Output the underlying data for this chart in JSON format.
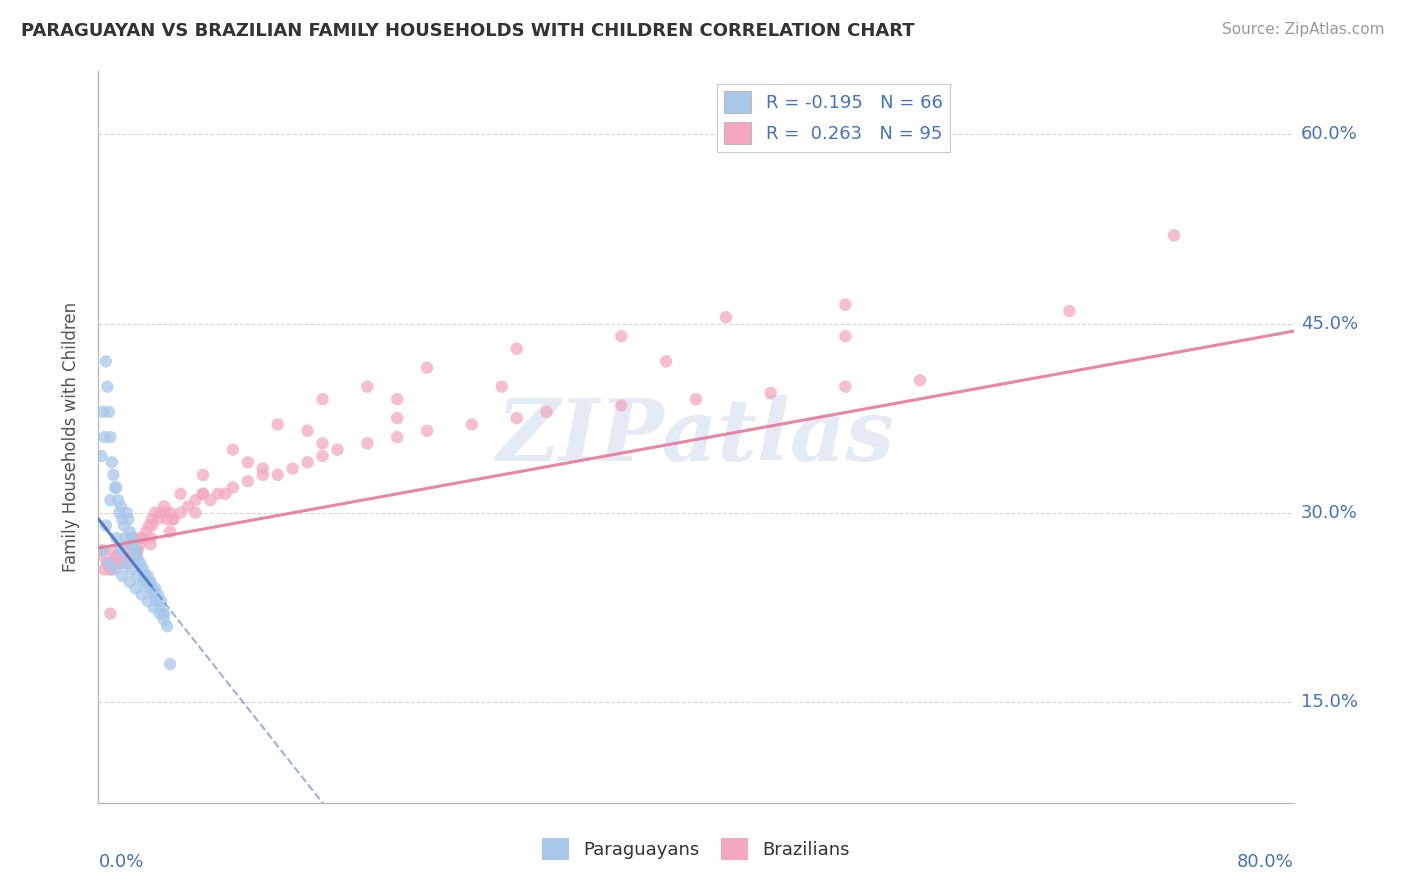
{
  "title": "PARAGUAYAN VS BRAZILIAN FAMILY HOUSEHOLDS WITH CHILDREN CORRELATION CHART",
  "source": "Source: ZipAtlas.com",
  "ylabel": "Family Households with Children",
  "ytick_labels": [
    "15.0%",
    "30.0%",
    "45.0%",
    "60.0%"
  ],
  "ytick_values": [
    0.15,
    0.3,
    0.45,
    0.6
  ],
  "xlim": [
    0.0,
    0.8
  ],
  "ylim": [
    0.07,
    0.65
  ],
  "background_color": "#ffffff",
  "grid_color": "#cccccc",
  "paraguayan_color": "#a8c8ea",
  "brazilian_color": "#f4a8c0",
  "paraguayan_line_color": "#4472c4",
  "brazilian_line_color": "#e87898",
  "R_paraguayan": -0.195,
  "N_paraguayan": 66,
  "R_brazilian": 0.263,
  "N_brazilian": 95,
  "par_x": [
    0.002,
    0.003,
    0.004,
    0.005,
    0.006,
    0.007,
    0.008,
    0.009,
    0.01,
    0.011,
    0.012,
    0.013,
    0.014,
    0.015,
    0.016,
    0.017,
    0.018,
    0.019,
    0.02,
    0.021,
    0.022,
    0.023,
    0.024,
    0.025,
    0.026,
    0.027,
    0.028,
    0.029,
    0.03,
    0.031,
    0.032,
    0.033,
    0.034,
    0.035,
    0.036,
    0.037,
    0.038,
    0.039,
    0.04,
    0.041,
    0.042,
    0.043,
    0.044,
    0.005,
    0.008,
    0.012,
    0.015,
    0.018,
    0.022,
    0.026,
    0.03,
    0.034,
    0.038,
    0.003,
    0.007,
    0.011,
    0.016,
    0.021,
    0.025,
    0.029,
    0.033,
    0.037,
    0.041,
    0.044,
    0.046,
    0.048
  ],
  "par_y": [
    0.345,
    0.38,
    0.36,
    0.42,
    0.4,
    0.38,
    0.36,
    0.34,
    0.33,
    0.32,
    0.32,
    0.31,
    0.3,
    0.305,
    0.295,
    0.29,
    0.28,
    0.3,
    0.295,
    0.285,
    0.28,
    0.275,
    0.27,
    0.27,
    0.265,
    0.26,
    0.26,
    0.255,
    0.255,
    0.25,
    0.245,
    0.25,
    0.245,
    0.245,
    0.24,
    0.235,
    0.24,
    0.23,
    0.235,
    0.225,
    0.23,
    0.22,
    0.22,
    0.29,
    0.31,
    0.28,
    0.27,
    0.26,
    0.255,
    0.25,
    0.245,
    0.24,
    0.235,
    0.27,
    0.26,
    0.255,
    0.25,
    0.245,
    0.24,
    0.235,
    0.23,
    0.225,
    0.22,
    0.215,
    0.21,
    0.18
  ],
  "bra_x": [
    0.002,
    0.004,
    0.006,
    0.008,
    0.01,
    0.012,
    0.014,
    0.016,
    0.018,
    0.02,
    0.022,
    0.024,
    0.026,
    0.028,
    0.03,
    0.032,
    0.034,
    0.036,
    0.038,
    0.04,
    0.042,
    0.044,
    0.046,
    0.048,
    0.05,
    0.055,
    0.06,
    0.065,
    0.07,
    0.075,
    0.08,
    0.09,
    0.1,
    0.11,
    0.12,
    0.13,
    0.14,
    0.15,
    0.16,
    0.18,
    0.2,
    0.22,
    0.25,
    0.28,
    0.3,
    0.35,
    0.4,
    0.45,
    0.5,
    0.55,
    0.006,
    0.012,
    0.02,
    0.028,
    0.036,
    0.045,
    0.055,
    0.07,
    0.09,
    0.12,
    0.15,
    0.18,
    0.22,
    0.28,
    0.35,
    0.42,
    0.5,
    0.004,
    0.01,
    0.018,
    0.026,
    0.035,
    0.05,
    0.07,
    0.1,
    0.14,
    0.2,
    0.008,
    0.016,
    0.025,
    0.035,
    0.048,
    0.065,
    0.085,
    0.11,
    0.15,
    0.2,
    0.27,
    0.38,
    0.5,
    0.65,
    0.72,
    0.008
  ],
  "bra_y": [
    0.27,
    0.265,
    0.26,
    0.255,
    0.27,
    0.265,
    0.26,
    0.27,
    0.265,
    0.26,
    0.275,
    0.28,
    0.27,
    0.275,
    0.28,
    0.285,
    0.29,
    0.295,
    0.3,
    0.295,
    0.3,
    0.305,
    0.295,
    0.3,
    0.295,
    0.3,
    0.305,
    0.31,
    0.315,
    0.31,
    0.315,
    0.32,
    0.325,
    0.33,
    0.33,
    0.335,
    0.34,
    0.345,
    0.35,
    0.355,
    0.36,
    0.365,
    0.37,
    0.375,
    0.38,
    0.385,
    0.39,
    0.395,
    0.4,
    0.405,
    0.26,
    0.265,
    0.275,
    0.28,
    0.29,
    0.3,
    0.315,
    0.33,
    0.35,
    0.37,
    0.39,
    0.4,
    0.415,
    0.43,
    0.44,
    0.455,
    0.465,
    0.255,
    0.26,
    0.265,
    0.27,
    0.28,
    0.295,
    0.315,
    0.34,
    0.365,
    0.39,
    0.255,
    0.26,
    0.265,
    0.275,
    0.285,
    0.3,
    0.315,
    0.335,
    0.355,
    0.375,
    0.4,
    0.42,
    0.44,
    0.46,
    0.52,
    0.22
  ]
}
